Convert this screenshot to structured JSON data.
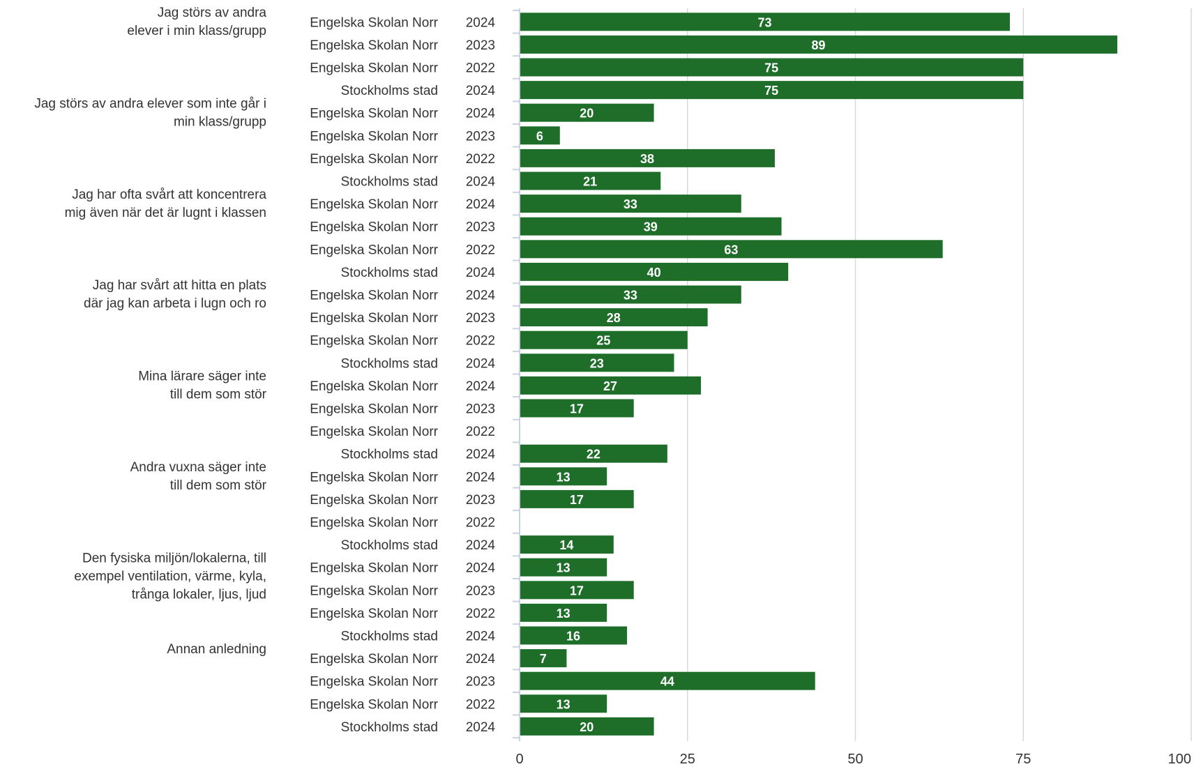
{
  "chart_data": {
    "type": "bar",
    "orientation": "horizontal",
    "title": "",
    "xlabel": "",
    "ylabel": "",
    "xlim": [
      0,
      100
    ],
    "x_ticks": [
      "0",
      "25",
      "50",
      "75",
      "100"
    ],
    "grid": true,
    "bar_color": "#1e6e2a",
    "label_color": "#ffffff",
    "groups": [
      {
        "label_lines": [
          "Jag störs av andra",
          "elever i min klass/grupp"
        ],
        "rows": [
          {
            "entity": "Engelska Skolan Norr",
            "year": "2024",
            "value": 73
          },
          {
            "entity": "Engelska Skolan Norr",
            "year": "2023",
            "value": 89
          },
          {
            "entity": "Engelska Skolan Norr",
            "year": "2022",
            "value": 75
          },
          {
            "entity": "Stockholms stad",
            "year": "2024",
            "value": 75
          }
        ]
      },
      {
        "label_lines": [
          "Jag störs av andra elever som inte går i",
          "min klass/grupp"
        ],
        "rows": [
          {
            "entity": "Engelska Skolan Norr",
            "year": "2024",
            "value": 20
          },
          {
            "entity": "Engelska Skolan Norr",
            "year": "2023",
            "value": 6
          },
          {
            "entity": "Engelska Skolan Norr",
            "year": "2022",
            "value": 38
          },
          {
            "entity": "Stockholms stad",
            "year": "2024",
            "value": 21
          }
        ]
      },
      {
        "label_lines": [
          "Jag har ofta svårt att koncentrera",
          "mig även när det är lugnt i klassen"
        ],
        "rows": [
          {
            "entity": "Engelska Skolan Norr",
            "year": "2024",
            "value": 33
          },
          {
            "entity": "Engelska Skolan Norr",
            "year": "2023",
            "value": 39
          },
          {
            "entity": "Engelska Skolan Norr",
            "year": "2022",
            "value": 63
          },
          {
            "entity": "Stockholms stad",
            "year": "2024",
            "value": 40
          }
        ]
      },
      {
        "label_lines": [
          "Jag har svårt att hitta en plats",
          "där jag kan arbeta i lugn och ro"
        ],
        "rows": [
          {
            "entity": "Engelska Skolan Norr",
            "year": "2024",
            "value": 33
          },
          {
            "entity": "Engelska Skolan Norr",
            "year": "2023",
            "value": 28
          },
          {
            "entity": "Engelska Skolan Norr",
            "year": "2022",
            "value": 25
          },
          {
            "entity": "Stockholms stad",
            "year": "2024",
            "value": 23
          }
        ]
      },
      {
        "label_lines": [
          "Mina lärare säger inte",
          "till dem som stör"
        ],
        "rows": [
          {
            "entity": "Engelska Skolan Norr",
            "year": "2024",
            "value": 27
          },
          {
            "entity": "Engelska Skolan Norr",
            "year": "2023",
            "value": 17
          },
          {
            "entity": "Engelska Skolan Norr",
            "year": "2022",
            "value": null
          },
          {
            "entity": "Stockholms stad",
            "year": "2024",
            "value": 22
          }
        ]
      },
      {
        "label_lines": [
          "Andra vuxna säger inte",
          "till dem som stör"
        ],
        "rows": [
          {
            "entity": "Engelska Skolan Norr",
            "year": "2024",
            "value": 13
          },
          {
            "entity": "Engelska Skolan Norr",
            "year": "2023",
            "value": 17
          },
          {
            "entity": "Engelska Skolan Norr",
            "year": "2022",
            "value": null
          },
          {
            "entity": "Stockholms stad",
            "year": "2024",
            "value": 14
          }
        ]
      },
      {
        "label_lines": [
          "Den fysiska miljön/lokalerna, till",
          "exempel ventilation, värme, kyla,",
          "trånga lokaler, ljus, ljud"
        ],
        "rows": [
          {
            "entity": "Engelska Skolan Norr",
            "year": "2024",
            "value": 13
          },
          {
            "entity": "Engelska Skolan Norr",
            "year": "2023",
            "value": 17
          },
          {
            "entity": "Engelska Skolan Norr",
            "year": "2022",
            "value": 13
          },
          {
            "entity": "Stockholms stad",
            "year": "2024",
            "value": 16
          }
        ]
      },
      {
        "label_lines": [
          "Annan anledning"
        ],
        "rows": [
          {
            "entity": "Engelska Skolan Norr",
            "year": "2024",
            "value": 7
          },
          {
            "entity": "Engelska Skolan Norr",
            "year": "2023",
            "value": 44
          },
          {
            "entity": "Engelska Skolan Norr",
            "year": "2022",
            "value": 13
          },
          {
            "entity": "Stockholms stad",
            "year": "2024",
            "value": 20
          }
        ]
      }
    ]
  }
}
